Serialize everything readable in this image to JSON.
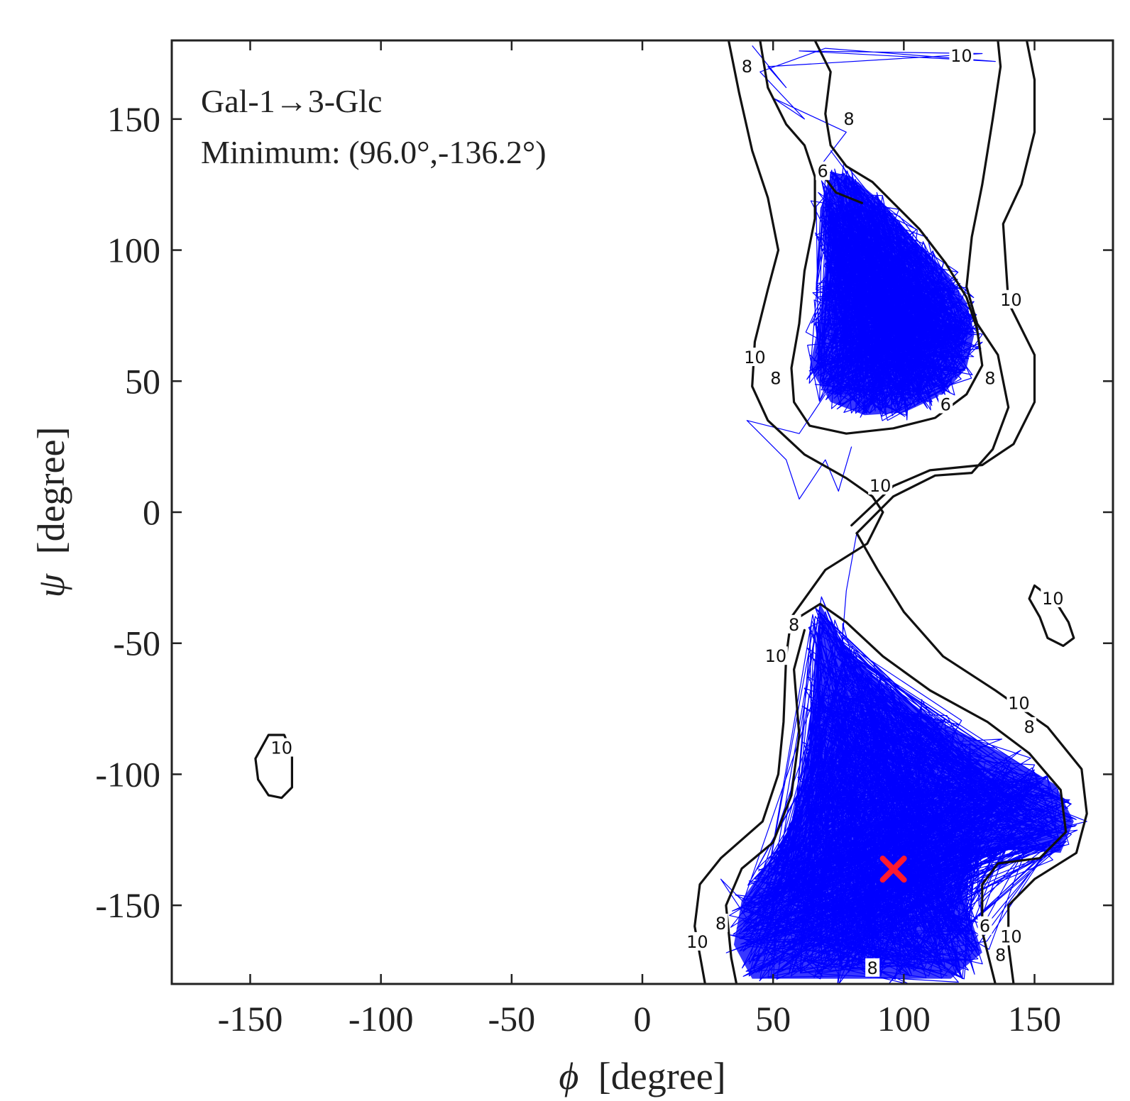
{
  "chart_data": {
    "type": "scatter",
    "title": "Gal-1→3-Glc",
    "subtitle": "Minimum: (96.0°,-136.2°)",
    "xlabel_symbol": "ϕ",
    "xlabel_unit": "[degree]",
    "ylabel_symbol": "ψ",
    "ylabel_unit": "[degree]",
    "xlim": [
      -180,
      180
    ],
    "ylim": [
      -180,
      180
    ],
    "xticks": [
      -150,
      -100,
      -50,
      0,
      50,
      100,
      150
    ],
    "yticks": [
      -150,
      -100,
      -50,
      0,
      50,
      100,
      150
    ],
    "grid": false,
    "colors": {
      "trajectory": "#0000ff",
      "contour": "#111111",
      "minimum": "#ff1a2e"
    },
    "minimum_marker": {
      "phi": 96.0,
      "psi": -136.2
    },
    "trajectory_regions": [
      {
        "name": "upper",
        "polygon": [
          [
            72,
            130
          ],
          [
            80,
            128
          ],
          [
            92,
            118
          ],
          [
            104,
            104
          ],
          [
            116,
            92
          ],
          [
            124,
            80
          ],
          [
            127,
            68
          ],
          [
            124,
            55
          ],
          [
            115,
            45
          ],
          [
            100,
            38
          ],
          [
            85,
            37
          ],
          [
            72,
            42
          ],
          [
            64,
            55
          ],
          [
            68,
            75
          ],
          [
            70,
            95
          ],
          [
            68,
            115
          ]
        ]
      },
      {
        "name": "lower",
        "polygon": [
          [
            68,
            -35
          ],
          [
            75,
            -48
          ],
          [
            88,
            -62
          ],
          [
            110,
            -78
          ],
          [
            138,
            -92
          ],
          [
            158,
            -104
          ],
          [
            165,
            -118
          ],
          [
            160,
            -130
          ],
          [
            135,
            -128
          ],
          [
            125,
            -132
          ],
          [
            124,
            -150
          ],
          [
            130,
            -168
          ],
          [
            118,
            -178
          ],
          [
            80,
            -178
          ],
          [
            42,
            -178
          ],
          [
            35,
            -165
          ],
          [
            38,
            -148
          ],
          [
            45,
            -138
          ],
          [
            55,
            -128
          ],
          [
            60,
            -112
          ],
          [
            64,
            -88
          ],
          [
            66,
            -55
          ]
        ]
      }
    ],
    "trajectory_segments": [
      {
        "name": "top-band",
        "points": [
          [
            42,
            178
          ],
          [
            55,
            162
          ],
          [
            48,
            170
          ],
          [
            130,
            175
          ],
          [
            60,
            176
          ],
          [
            135,
            172
          ],
          [
            70,
            177
          ],
          [
            45,
            168
          ],
          [
            62,
            150
          ],
          [
            50,
            158
          ],
          [
            78,
            145
          ],
          [
            68,
            132
          ],
          [
            84,
            122
          ],
          [
            72,
            138
          ]
        ]
      },
      {
        "name": "stray-upper",
        "points": [
          [
            70,
            45
          ],
          [
            60,
            30
          ],
          [
            40,
            35
          ],
          [
            55,
            20
          ],
          [
            60,
            5
          ],
          [
            70,
            20
          ],
          [
            75,
            8
          ],
          [
            80,
            25
          ]
        ]
      },
      {
        "name": "stray-lower",
        "points": [
          [
            82,
            -8
          ],
          [
            78,
            -30
          ],
          [
            76,
            -55
          ],
          [
            70,
            -38
          ],
          [
            62,
            -80
          ],
          [
            58,
            -120
          ],
          [
            40,
            -150
          ],
          [
            30,
            -140
          ],
          [
            50,
            -170
          ],
          [
            60,
            -145
          ],
          [
            170,
            -118
          ],
          [
            150,
            -110
          ]
        ]
      }
    ],
    "contours": [
      {
        "level": 10,
        "points": [
          [
            33,
            180
          ],
          [
            37,
            160
          ],
          [
            42,
            138
          ],
          [
            48,
            120
          ],
          [
            52,
            100
          ],
          [
            48,
            85
          ],
          [
            43,
            65
          ],
          [
            42,
            48
          ],
          [
            48,
            35
          ],
          [
            62,
            22
          ],
          [
            78,
            13
          ],
          [
            88,
            6
          ],
          [
            92,
            0
          ],
          [
            86,
            -12
          ],
          [
            70,
            -22
          ],
          [
            57,
            -40
          ],
          [
            55,
            -55
          ],
          [
            54,
            -80
          ],
          [
            52,
            -100
          ],
          [
            46,
            -118
          ],
          [
            30,
            -132
          ],
          [
            22,
            -142
          ],
          [
            20,
            -158
          ],
          [
            24,
            -180
          ]
        ]
      },
      {
        "level": 10,
        "points": [
          [
            80,
            -5
          ],
          [
            96,
            10
          ],
          [
            110,
            16
          ],
          [
            130,
            18
          ],
          [
            142,
            26
          ],
          [
            150,
            42
          ],
          [
            150,
            60
          ],
          [
            140,
            80
          ],
          [
            138,
            110
          ],
          [
            145,
            125
          ],
          [
            150,
            145
          ],
          [
            150,
            165
          ],
          [
            147,
            180
          ]
        ]
      },
      {
        "level": 10,
        "points": [
          [
            82,
            -8
          ],
          [
            90,
            -22
          ],
          [
            100,
            -38
          ],
          [
            115,
            -55
          ],
          [
            135,
            -68
          ],
          [
            155,
            -82
          ],
          [
            168,
            -98
          ],
          [
            170,
            -115
          ],
          [
            166,
            -130
          ],
          [
            150,
            -140
          ],
          [
            140,
            -150
          ],
          [
            140,
            -165
          ],
          [
            142,
            -180
          ]
        ]
      },
      {
        "level": 8,
        "points": [
          [
            45,
            180
          ],
          [
            48,
            162
          ],
          [
            55,
            148
          ],
          [
            62,
            140
          ],
          [
            66,
            128
          ],
          [
            66,
            112
          ],
          [
            62,
            92
          ],
          [
            60,
            72
          ],
          [
            57,
            55
          ],
          [
            58,
            42
          ],
          [
            64,
            33
          ],
          [
            78,
            30
          ],
          [
            96,
            32
          ],
          [
            112,
            36
          ],
          [
            124,
            45
          ],
          [
            130,
            56
          ],
          [
            128,
            70
          ],
          [
            124,
            82
          ],
          [
            116,
            95
          ],
          [
            106,
            108
          ],
          [
            96,
            118
          ],
          [
            88,
            126
          ],
          [
            78,
            132
          ],
          [
            72,
            140
          ],
          [
            70,
            152
          ],
          [
            72,
            168
          ],
          [
            66,
            180
          ]
        ]
      },
      {
        "level": 8,
        "points": [
          [
            82,
            -8
          ],
          [
            96,
            6
          ],
          [
            112,
            14
          ],
          [
            126,
            15
          ],
          [
            134,
            24
          ],
          [
            140,
            40
          ],
          [
            136,
            60
          ],
          [
            128,
            72
          ],
          [
            124,
            86
          ],
          [
            126,
            105
          ],
          [
            130,
            125
          ],
          [
            134,
            150
          ],
          [
            137,
            170
          ],
          [
            136,
            180
          ]
        ]
      },
      {
        "level": 8,
        "points": [
          [
            60,
            -40
          ],
          [
            68,
            -35
          ],
          [
            78,
            -42
          ],
          [
            92,
            -55
          ],
          [
            110,
            -68
          ],
          [
            132,
            -80
          ],
          [
            148,
            -92
          ],
          [
            160,
            -106
          ],
          [
            162,
            -122
          ],
          [
            152,
            -132
          ],
          [
            136,
            -134
          ],
          [
            130,
            -142
          ],
          [
            130,
            -160
          ],
          [
            135,
            -180
          ]
        ]
      },
      {
        "level": 8,
        "points": [
          [
            62,
            -45
          ],
          [
            58,
            -60
          ],
          [
            60,
            -85
          ],
          [
            57,
            -108
          ],
          [
            50,
            -126
          ],
          [
            38,
            -136
          ],
          [
            32,
            -150
          ],
          [
            34,
            -170
          ],
          [
            36,
            -180
          ]
        ]
      },
      {
        "level": 6,
        "points": [
          [
            68,
            130
          ],
          [
            74,
            122
          ],
          [
            84,
            118
          ]
        ]
      },
      {
        "level": 10,
        "closed": true,
        "points": [
          [
            150,
            -28
          ],
          [
            158,
            -34
          ],
          [
            163,
            -42
          ],
          [
            165,
            -48
          ],
          [
            161,
            -51
          ],
          [
            155,
            -48
          ],
          [
            152,
            -40
          ],
          [
            148,
            -33
          ]
        ]
      },
      {
        "level": 10,
        "closed": true,
        "points": [
          [
            -143,
            -85
          ],
          [
            -137,
            -85
          ],
          [
            -134,
            -92
          ],
          [
            -134,
            -105
          ],
          [
            -138,
            -109
          ],
          [
            -143,
            -108
          ],
          [
            -147,
            -102
          ],
          [
            -148,
            -94
          ]
        ]
      }
    ],
    "contour_labels": [
      {
        "text": "10",
        "x": 122,
        "y": 174
      },
      {
        "text": "8",
        "x": 40,
        "y": 170
      },
      {
        "text": "8",
        "x": 79,
        "y": 150
      },
      {
        "text": "6",
        "x": 69,
        "y": 130
      },
      {
        "text": "10",
        "x": 141,
        "y": 81
      },
      {
        "text": "10",
        "x": 43,
        "y": 59
      },
      {
        "text": "8",
        "x": 51,
        "y": 51
      },
      {
        "text": "6",
        "x": 116,
        "y": 41
      },
      {
        "text": "8",
        "x": 133,
        "y": 51
      },
      {
        "text": "10",
        "x": 91,
        "y": 10
      },
      {
        "text": "10",
        "x": 157,
        "y": -33
      },
      {
        "text": "8",
        "x": 58,
        "y": -43
      },
      {
        "text": "10",
        "x": 51,
        "y": -55
      },
      {
        "text": "10",
        "x": 144,
        "y": -73
      },
      {
        "text": "8",
        "x": 148,
        "y": -82
      },
      {
        "text": "10",
        "x": -138,
        "y": -90
      },
      {
        "text": "10",
        "x": 21,
        "y": -164
      },
      {
        "text": "8",
        "x": 30,
        "y": -157
      },
      {
        "text": "10",
        "x": 141,
        "y": -162
      },
      {
        "text": "8",
        "x": 137,
        "y": -169
      },
      {
        "text": "8",
        "x": 88,
        "y": -174
      },
      {
        "text": "6",
        "x": 131,
        "y": -158
      }
    ]
  }
}
